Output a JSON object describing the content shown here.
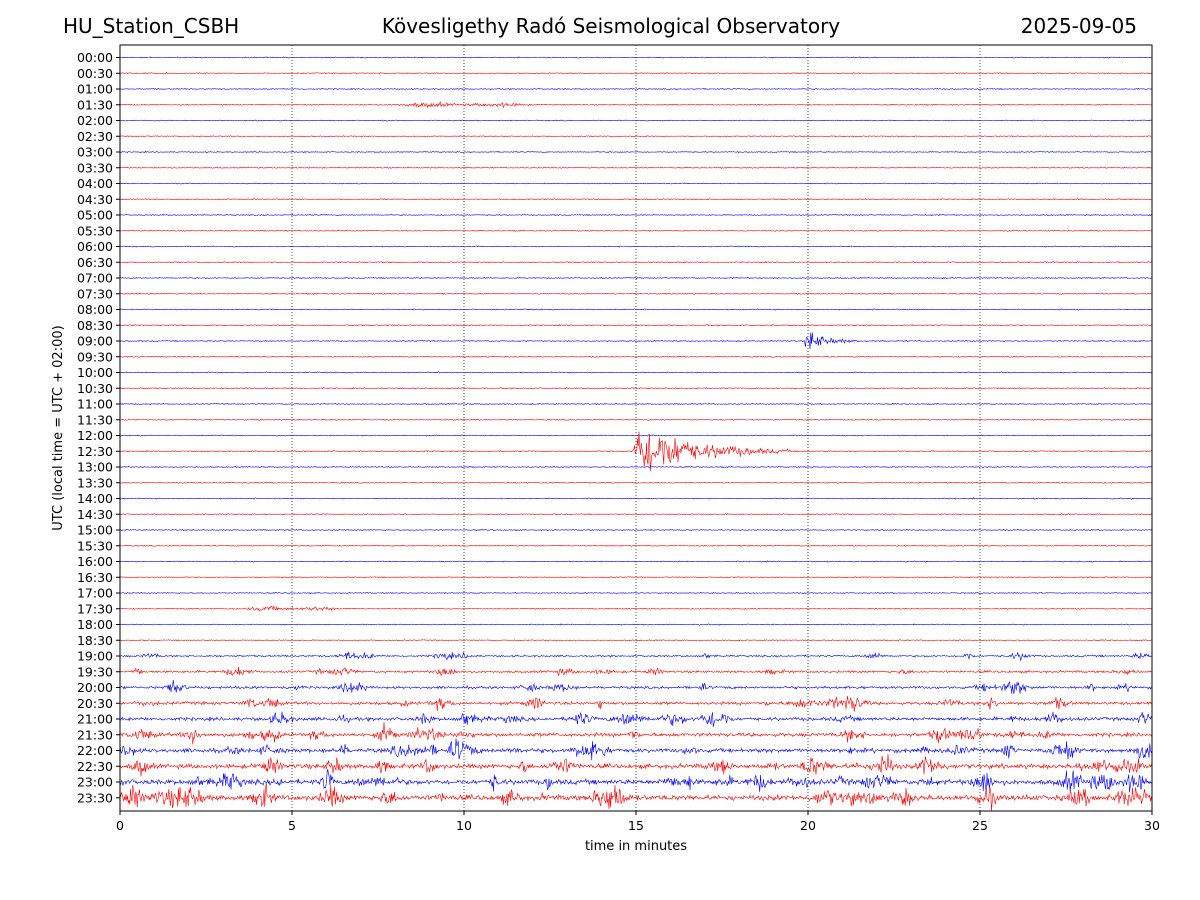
{
  "header": {
    "station": "HU_Station_CSBH",
    "observatory": "Kövesligethy Radó Seismological Observatory",
    "date": "2025-09-05"
  },
  "chart_data": {
    "type": "line",
    "title": "Kövesligethy Radó Seismological Observatory",
    "xlabel": "time in minutes",
    "ylabel": "UTC (local time = UTC + 02:00)",
    "xlim": [
      0,
      30
    ],
    "xticks": [
      0,
      5,
      10,
      15,
      20,
      25,
      30
    ],
    "grid": "vertical dotted at x ticks",
    "colors": {
      "even_rows": "#0000ff",
      "odd_rows": "#ff0000"
    },
    "rows": [
      "00:00",
      "00:30",
      "01:00",
      "01:30",
      "02:00",
      "02:30",
      "03:00",
      "03:30",
      "04:00",
      "04:30",
      "05:00",
      "05:30",
      "06:00",
      "06:30",
      "07:00",
      "07:30",
      "08:00",
      "08:30",
      "09:00",
      "09:30",
      "10:00",
      "10:30",
      "11:00",
      "11:30",
      "12:00",
      "12:30",
      "13:00",
      "13:30",
      "14:00",
      "14:30",
      "15:00",
      "15:30",
      "16:00",
      "16:30",
      "17:00",
      "17:30",
      "18:00",
      "18:30",
      "19:00",
      "19:30",
      "20:00",
      "20:30",
      "21:00",
      "21:30",
      "22:00",
      "22:30",
      "23:00",
      "23:30"
    ],
    "events": [
      {
        "row": "01:30",
        "start_min": 7.8,
        "end_min": 12.0,
        "peak_amplitude": "small"
      },
      {
        "row": "09:00",
        "start_min": 19.9,
        "end_min": 21.5,
        "peak_amplitude": "medium"
      },
      {
        "row": "12:30",
        "start_min": 14.9,
        "end_min": 19.5,
        "peak_amplitude": "large"
      },
      {
        "row": "17:30",
        "start_min": 3.5,
        "end_min": 6.5,
        "peak_amplitude": "small"
      }
    ]
  }
}
